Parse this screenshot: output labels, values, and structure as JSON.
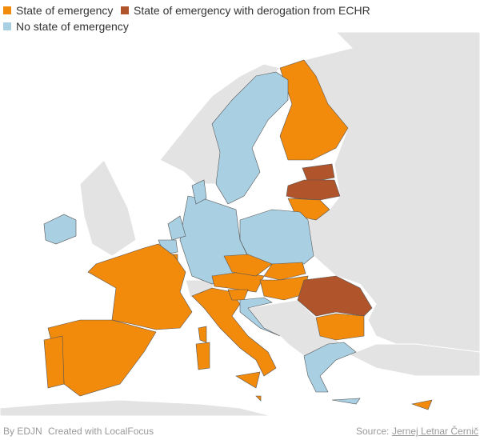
{
  "legend": [
    {
      "label": "State of emergency",
      "color": "#f28a0b"
    },
    {
      "label": "State of emergency with derogation from ECHR",
      "color": "#b0552b"
    },
    {
      "label": "No state of emergency",
      "color": "#a9cfe3"
    }
  ],
  "footer": {
    "by": "By EDJN",
    "created": "Created with LocalFocus",
    "source_label": "Source:",
    "source": "Jernej Letnar Černič"
  }
}
